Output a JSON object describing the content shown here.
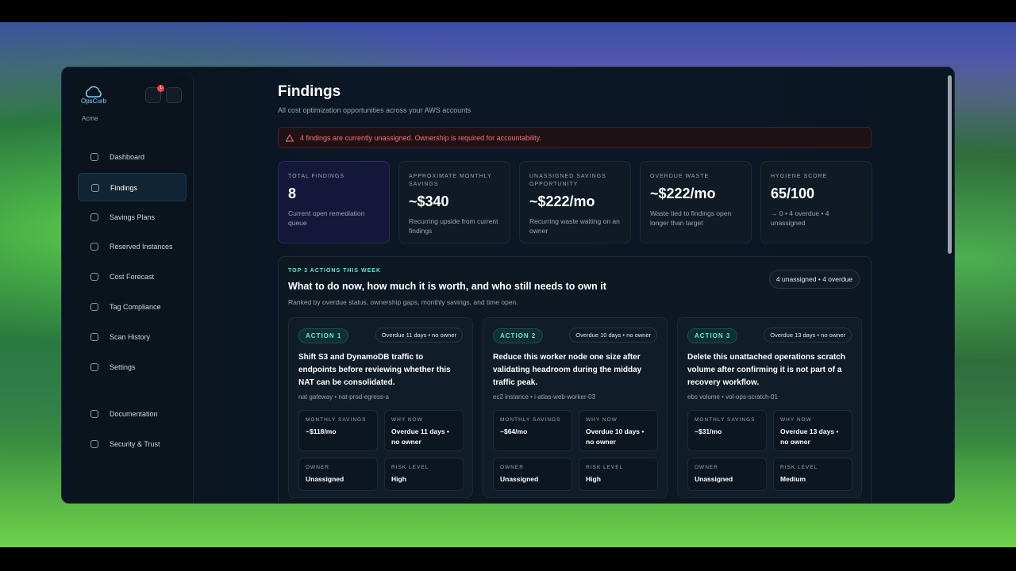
{
  "brand": {
    "name": "OpsCurb",
    "org": "Acme",
    "notifications": "1"
  },
  "nav": {
    "main": [
      "Dashboard",
      "Findings",
      "Savings Plans",
      "Reserved Instances",
      "Cost Forecast",
      "Tag Compliance",
      "Scan History",
      "Settings"
    ],
    "footer": [
      "Documentation",
      "Security & Trust"
    ]
  },
  "header": {
    "title": "Findings",
    "subtitle": "All cost optimization opportunities across your AWS accounts"
  },
  "alert": {
    "text": "4 findings are currently unassigned. Ownership is required for accountability."
  },
  "stats": [
    {
      "label": "TOTAL FINDINGS",
      "value": "8",
      "note": "Current open remediation queue"
    },
    {
      "label": "APPROXIMATE MONTHLY SAVINGS",
      "value": "~$340",
      "note": "Recurring upside from current findings"
    },
    {
      "label": "UNASSIGNED SAVINGS OPPORTUNITY",
      "value": "~$222/mo",
      "note": "Recurring waste waiting on an owner"
    },
    {
      "label": "OVERDUE WASTE",
      "value": "~$222/mo",
      "note": "Waste tied to findings open longer than target"
    },
    {
      "label": "HYGIENE SCORE",
      "value": "65/100",
      "note": "→ 0 • 4 overdue • 4 unassigned"
    }
  ],
  "actions": {
    "eyebrow": "TOP 3 ACTIONS THIS WEEK",
    "title": "What to do now, how much it is worth, and who still needs to own it",
    "subtitle": "Ranked by overdue status, ownership gaps, monthly savings, and time open.",
    "badge": "4 unassigned • 4 overdue",
    "cards": [
      {
        "tag": "ACTION 1",
        "status": "Overdue 11 days • no owner",
        "title": "Shift S3 and DynamoDB traffic to endpoints before reviewing whether this NAT can be consolidated.",
        "resource": "nat gateway • nat-prod-egress-a",
        "metrics": [
          {
            "label": "MONTHLY SAVINGS",
            "value": "~$118/mo"
          },
          {
            "label": "WHY NOW",
            "value": "Overdue 11 days • no owner"
          },
          {
            "label": "OWNER",
            "value": "Unassigned"
          },
          {
            "label": "RISK LEVEL",
            "value": "High"
          }
        ]
      },
      {
        "tag": "ACTION 2",
        "status": "Overdue 10 days • no owner",
        "title": "Reduce this worker node one size after validating headroom during the midday traffic peak.",
        "resource": "ec2 instance • i-atlas-web-worker-03",
        "metrics": [
          {
            "label": "MONTHLY SAVINGS",
            "value": "~$64/mo"
          },
          {
            "label": "WHY NOW",
            "value": "Overdue 10 days • no owner"
          },
          {
            "label": "OWNER",
            "value": "Unassigned"
          },
          {
            "label": "RISK LEVEL",
            "value": "High"
          }
        ]
      },
      {
        "tag": "ACTION 3",
        "status": "Overdue 13 days • no owner",
        "title": "Delete this unattached operations scratch volume after confirming it is not part of a recovery workflow.",
        "resource": "ebs volume • vol-ops-scratch-01",
        "metrics": [
          {
            "label": "MONTHLY SAVINGS",
            "value": "~$31/mo"
          },
          {
            "label": "WHY NOW",
            "value": "Overdue 13 days • no owner"
          },
          {
            "label": "OWNER",
            "value": "Unassigned"
          },
          {
            "label": "RISK LEVEL",
            "value": "Medium"
          }
        ]
      }
    ]
  }
}
